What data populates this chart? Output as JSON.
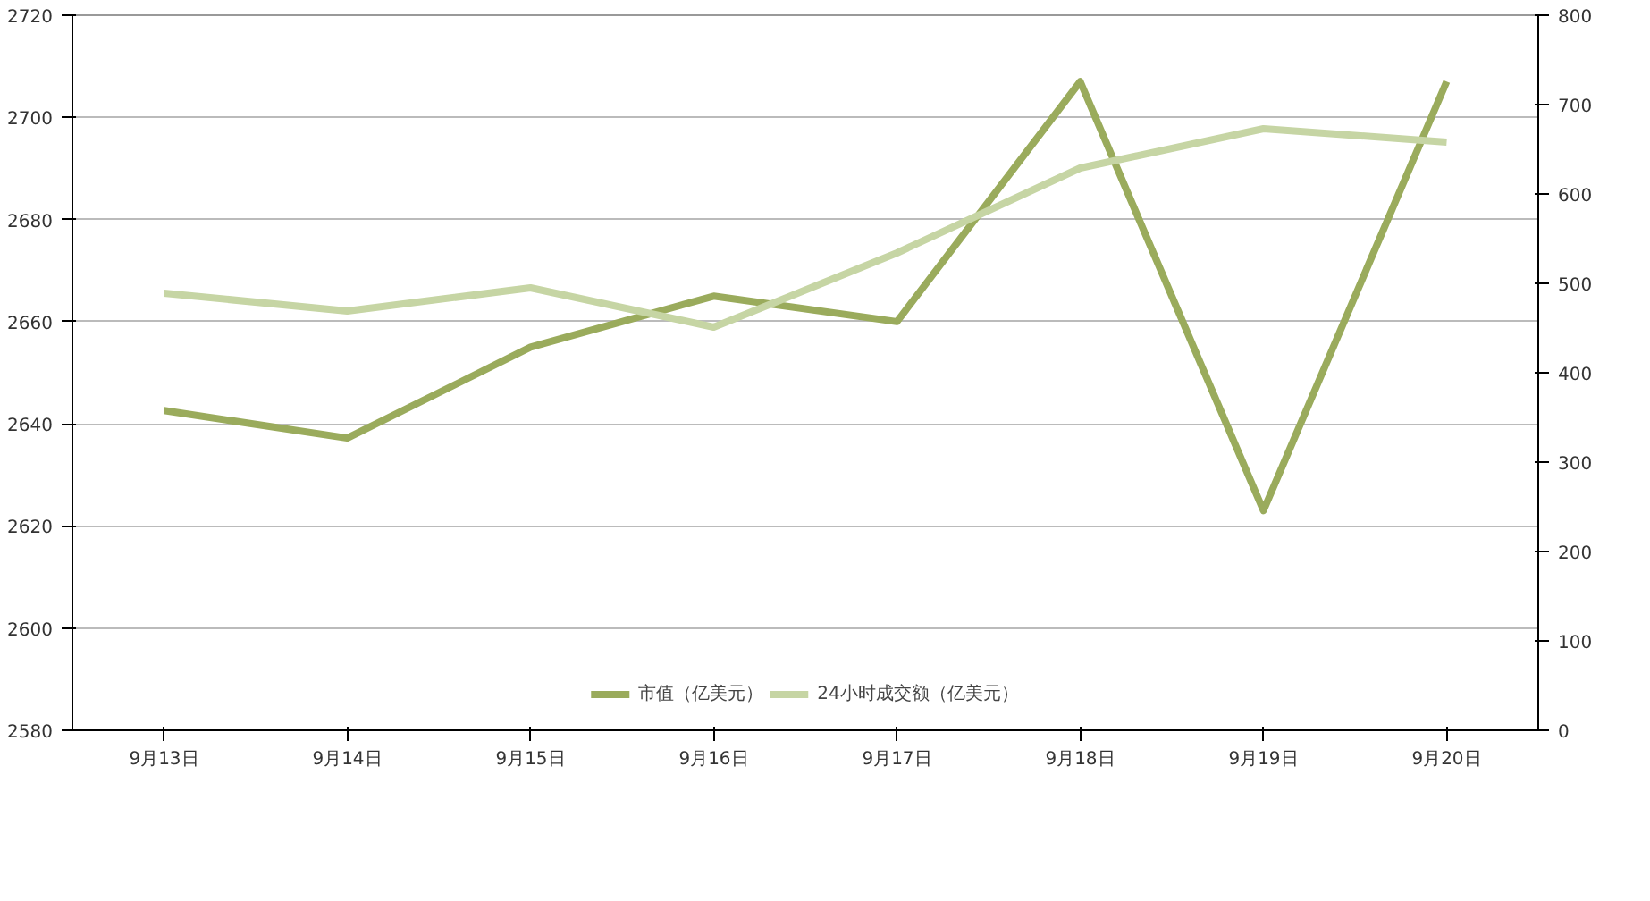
{
  "chart_data": {
    "type": "line",
    "categories": [
      "9月13日",
      "9月14日",
      "9月15日",
      "9月16日",
      "9月17日",
      "9月18日",
      "9月19日",
      "9月20日"
    ],
    "series": [
      {
        "name": "市值（亿美元）",
        "color": "#9aab5c",
        "values": [
          2642.6,
          2637.2,
          2655,
          2665,
          2660,
          2707,
          2623,
          2707
        ]
      },
      {
        "name": "24小时成交额（亿美元）",
        "color": "#c6d5a4",
        "axis": "y2",
        "values": [
          489,
          469,
          495,
          451,
          534,
          629,
          673,
          658
        ]
      }
    ],
    "ylim": [
      2580,
      2720
    ],
    "yticks": [
      2580,
      2600,
      2620,
      2640,
      2660,
      2680,
      2700,
      2720
    ],
    "y2lim": [
      0,
      800
    ],
    "y2ticks": [
      0,
      100,
      200,
      300,
      400,
      500,
      600,
      700,
      800
    ],
    "grid": "y",
    "legend": "bottom",
    "marker": "none",
    "line_style": "solid"
  }
}
